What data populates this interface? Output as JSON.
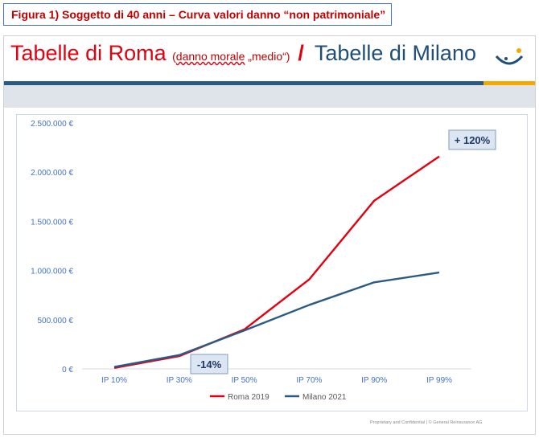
{
  "caption": "Figura 1) Soggetto di 40 anni – Curva valori danno “non patrimoniale”",
  "header": {
    "title_roma": "Tabelle di Roma",
    "title_roma_prefix": "(",
    "title_roma_sub": "danno morale",
    "title_roma_suffix": " „medio“)",
    "slash": "/",
    "title_milano": "Tabelle di Milano"
  },
  "footer": "Proprietary and Confidential  |  © General Reinsurance AG",
  "colors": {
    "roma": "#e3000f",
    "milano": "#2b5b84",
    "axis_text": "#4472c4",
    "callout_bg": "#dce6f2"
  },
  "chart_data": {
    "type": "line",
    "categories": [
      "IP 10%",
      "IP 30%",
      "IP 50%",
      "IP 70%",
      "IP 90%",
      "IP 99%"
    ],
    "series": [
      {
        "name": "Roma 2019",
        "values": [
          10000,
          130000,
          400000,
          910000,
          1710000,
          2160000
        ]
      },
      {
        "name": "Milano 2021",
        "values": [
          20000,
          140000,
          390000,
          650000,
          880000,
          980000
        ]
      }
    ],
    "ylim": [
      0,
      2500000
    ],
    "yticks": [
      0,
      500000,
      1000000,
      1500000,
      2000000,
      2500000
    ],
    "ytick_labels": [
      "0 €",
      "500.000 €",
      "1.000.000 €",
      "1.500.000 €",
      "2.000.000 €",
      "2.500.000 €"
    ],
    "legend_position": "bottom",
    "grid": false,
    "annotations": [
      "+ 120%",
      "-14%"
    ]
  }
}
